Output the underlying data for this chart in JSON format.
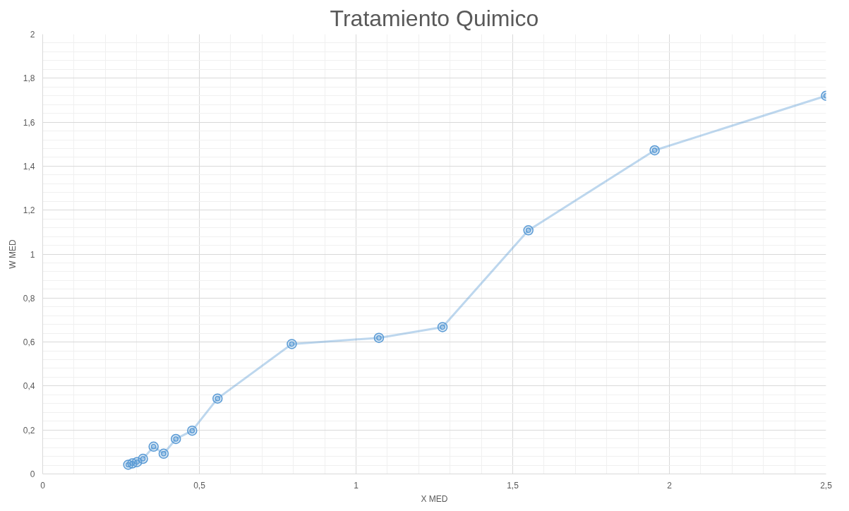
{
  "chart_data": {
    "type": "line",
    "title": "Tratamiento Quimico",
    "xlabel": "X MED",
    "ylabel": "W MED",
    "xlim": [
      0,
      2.5
    ],
    "ylim": [
      0,
      2
    ],
    "xticks": [
      0,
      {
        "value": 0.5,
        "label": "0,5"
      },
      1,
      {
        "value": 1.5,
        "label": "1,5"
      },
      2,
      {
        "value": 2.5,
        "label": "2,5"
      }
    ],
    "yticks": [
      0,
      {
        "value": 0.2,
        "label": "0,2"
      },
      {
        "value": 0.4,
        "label": "0,4"
      },
      {
        "value": 0.6,
        "label": "0,6"
      },
      {
        "value": 0.8,
        "label": "0,8"
      },
      1,
      {
        "value": 1.2,
        "label": "1,2"
      },
      {
        "value": 1.4,
        "label": "1,4"
      },
      {
        "value": 1.6,
        "label": "1,6"
      },
      {
        "value": 1.8,
        "label": "1,8"
      },
      2
    ],
    "grid": true,
    "marker": "circle",
    "line_style": "solid",
    "series": [
      {
        "color": "#5b9bd5",
        "x": [
          0.273,
          0.286,
          0.301,
          0.32,
          0.354,
          0.386,
          0.425,
          0.477,
          0.558,
          0.795,
          1.073,
          1.276,
          1.55,
          1.953,
          2.5
        ],
        "values": [
          0.042,
          0.048,
          0.054,
          0.069,
          0.124,
          0.092,
          0.159,
          0.197,
          0.343,
          0.591,
          0.619,
          0.668,
          1.108,
          1.472,
          1.72
        ]
      }
    ]
  }
}
